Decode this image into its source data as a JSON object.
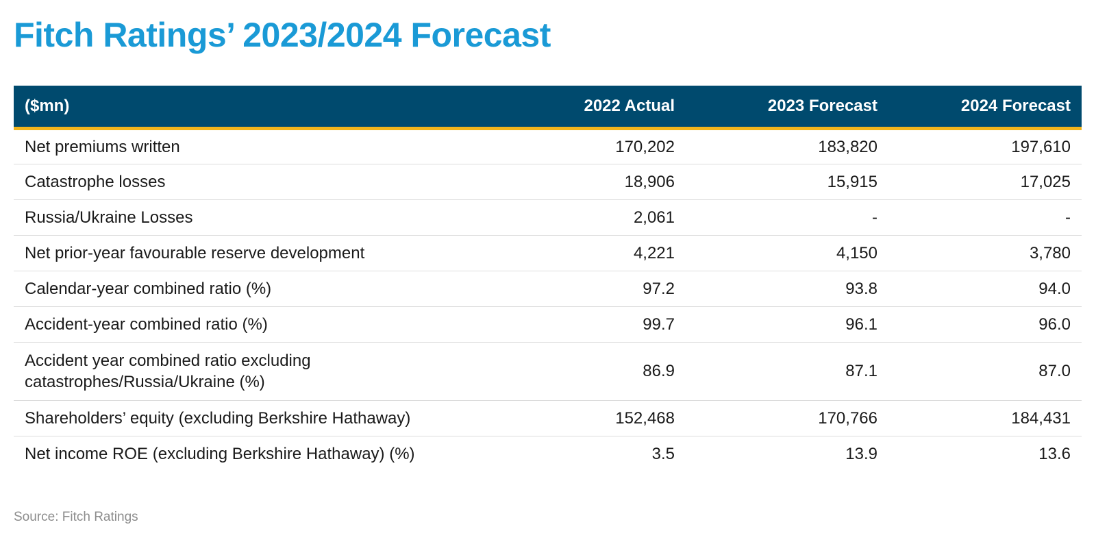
{
  "title": "Fitch Ratings’ 2023/2024 Forecast",
  "source": "Source: Fitch Ratings",
  "colors": {
    "title": "#1a9ad6",
    "header_bg": "#004a6e",
    "header_text": "#ffffff",
    "header_underline": "#f2b51c",
    "row_divider": "#dcdcdc",
    "source_text": "#8c8c8c"
  },
  "chart_data": {
    "type": "table",
    "title": "Fitch Ratings’ 2023/2024 Forecast",
    "columns": [
      "($mn)",
      "2022 Actual",
      "2023 Forecast",
      "2024 Forecast"
    ],
    "rows": [
      {
        "label": "Net premiums written",
        "values": [
          "170,202",
          "183,820",
          "197,610"
        ]
      },
      {
        "label": "Catastrophe losses",
        "values": [
          "18,906",
          "15,915",
          "17,025"
        ]
      },
      {
        "label": "Russia/Ukraine Losses",
        "values": [
          "2,061",
          "-",
          "-"
        ]
      },
      {
        "label": "Net prior-year favourable reserve development",
        "values": [
          "4,221",
          "4,150",
          "3,780"
        ]
      },
      {
        "label": "Calendar-year combined ratio (%)",
        "values": [
          "97.2",
          "93.8",
          "94.0"
        ]
      },
      {
        "label": "Accident-year combined ratio (%)",
        "values": [
          "99.7",
          "96.1",
          "96.0"
        ]
      },
      {
        "label": "Accident year combined ratio excluding catastrophes/Russia/Ukraine (%)",
        "values": [
          "86.9",
          "87.1",
          "87.0"
        ]
      },
      {
        "label": "Shareholders’ equity (excluding Berkshire Hathaway)",
        "values": [
          "152,468",
          "170,766",
          "184,431"
        ]
      },
      {
        "label": "Net income ROE (excluding Berkshire Hathaway) (%)",
        "values": [
          "3.5",
          "13.9",
          "13.6"
        ]
      }
    ],
    "source": "Source: Fitch Ratings"
  }
}
